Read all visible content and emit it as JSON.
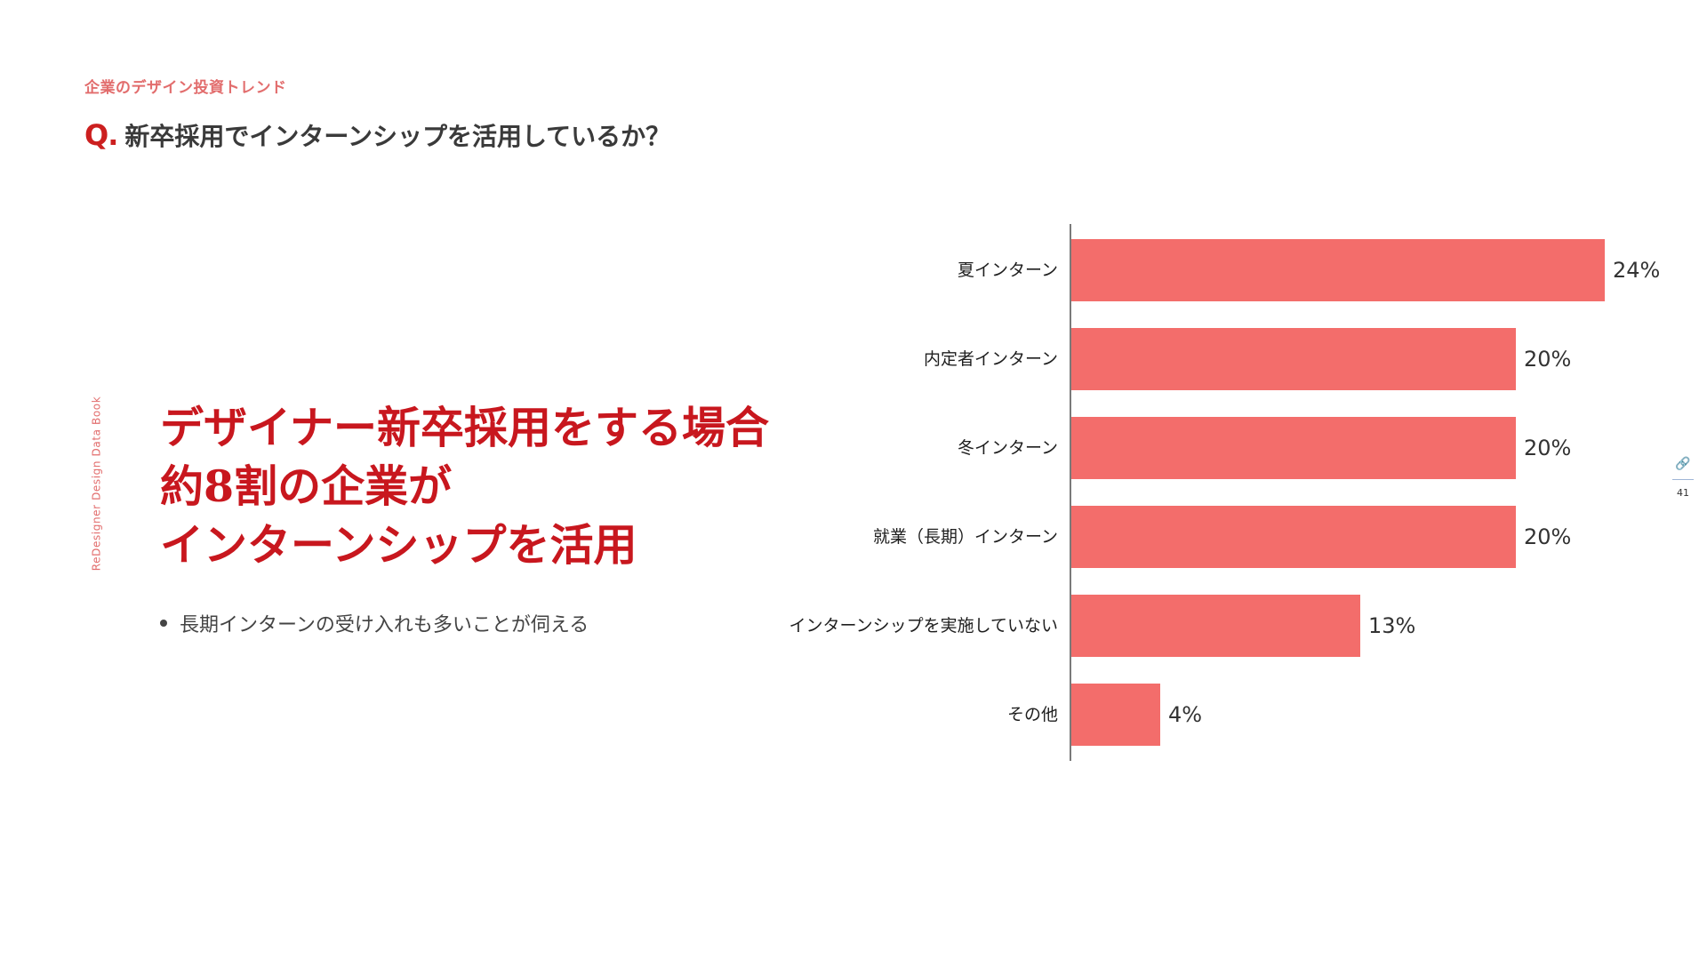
{
  "header": {
    "section_label": "企業のデザイン投資トレンド",
    "q_mark": "Q.",
    "question": "新卒採用でインターンシップを活用しているか？"
  },
  "sidebar": {
    "vertical_label": "ReDesigner Design Data Book"
  },
  "headline": {
    "lines": [
      "デザイナー新卒採用をする場合",
      "約8割の企業が",
      "インターンシップを活用"
    ]
  },
  "bullets": [
    "長期インターンの受け入れも多いことが伺える"
  ],
  "page": {
    "number": "41",
    "icon": "link-icon"
  },
  "colors": {
    "bar": "#f36d6b",
    "accent": "#cc1f1f",
    "label_pink": "#e26d6d"
  },
  "chart_data": {
    "type": "bar",
    "orientation": "horizontal",
    "categories": [
      "夏インターン",
      "内定者インターン",
      "冬インターン",
      "就業（長期）インターン",
      "インターンシップを実施していない",
      "その他"
    ],
    "values": [
      24,
      20,
      20,
      20,
      13,
      4
    ],
    "value_labels": [
      "24%",
      "20%",
      "20%",
      "20%",
      "13%",
      "4%"
    ],
    "unit": "%",
    "xlim": [
      0,
      24
    ],
    "grid": false,
    "legend": "none"
  }
}
